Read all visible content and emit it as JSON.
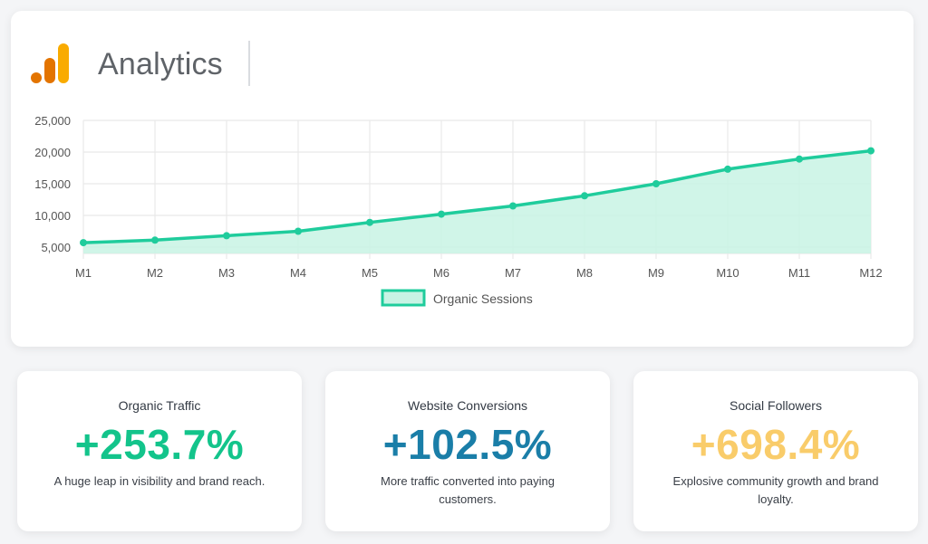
{
  "header": {
    "brand": "Analytics"
  },
  "colors": {
    "logo": [
      "#e37400",
      "#f9ab00"
    ],
    "series_line": "#1fcc9c",
    "series_fill": "#c8f3e4",
    "stat_organic": "#13c48b",
    "stat_conversions": "#1a7ea8",
    "stat_social": "#f9cc6a"
  },
  "chart_data": {
    "type": "area",
    "x": [
      "M1",
      "M2",
      "M3",
      "M4",
      "M5",
      "M6",
      "M7",
      "M8",
      "M9",
      "M10",
      "M11",
      "M12"
    ],
    "series": [
      {
        "name": "Organic Sessions",
        "values": [
          5700,
          6100,
          6800,
          7500,
          8900,
          10200,
          11500,
          13100,
          15000,
          17300,
          18900,
          20200
        ]
      }
    ],
    "ylim": [
      4000,
      25000
    ],
    "yticks": [
      5000,
      10000,
      15000,
      20000,
      25000
    ],
    "ytick_labels": [
      "5,000",
      "10,000",
      "15,000",
      "20,000",
      "25,000"
    ],
    "grid": true,
    "legend_position": "bottom"
  },
  "stats": [
    {
      "title": "Organic Traffic",
      "value": "+253.7%",
      "desc": "A huge leap in visibility and brand reach."
    },
    {
      "title": "Website Conversions",
      "value": "+102.5%",
      "desc": "More traffic converted into paying customers."
    },
    {
      "title": "Social Followers",
      "value": "+698.4%",
      "desc": "Explosive community growth and brand loyalty."
    }
  ]
}
